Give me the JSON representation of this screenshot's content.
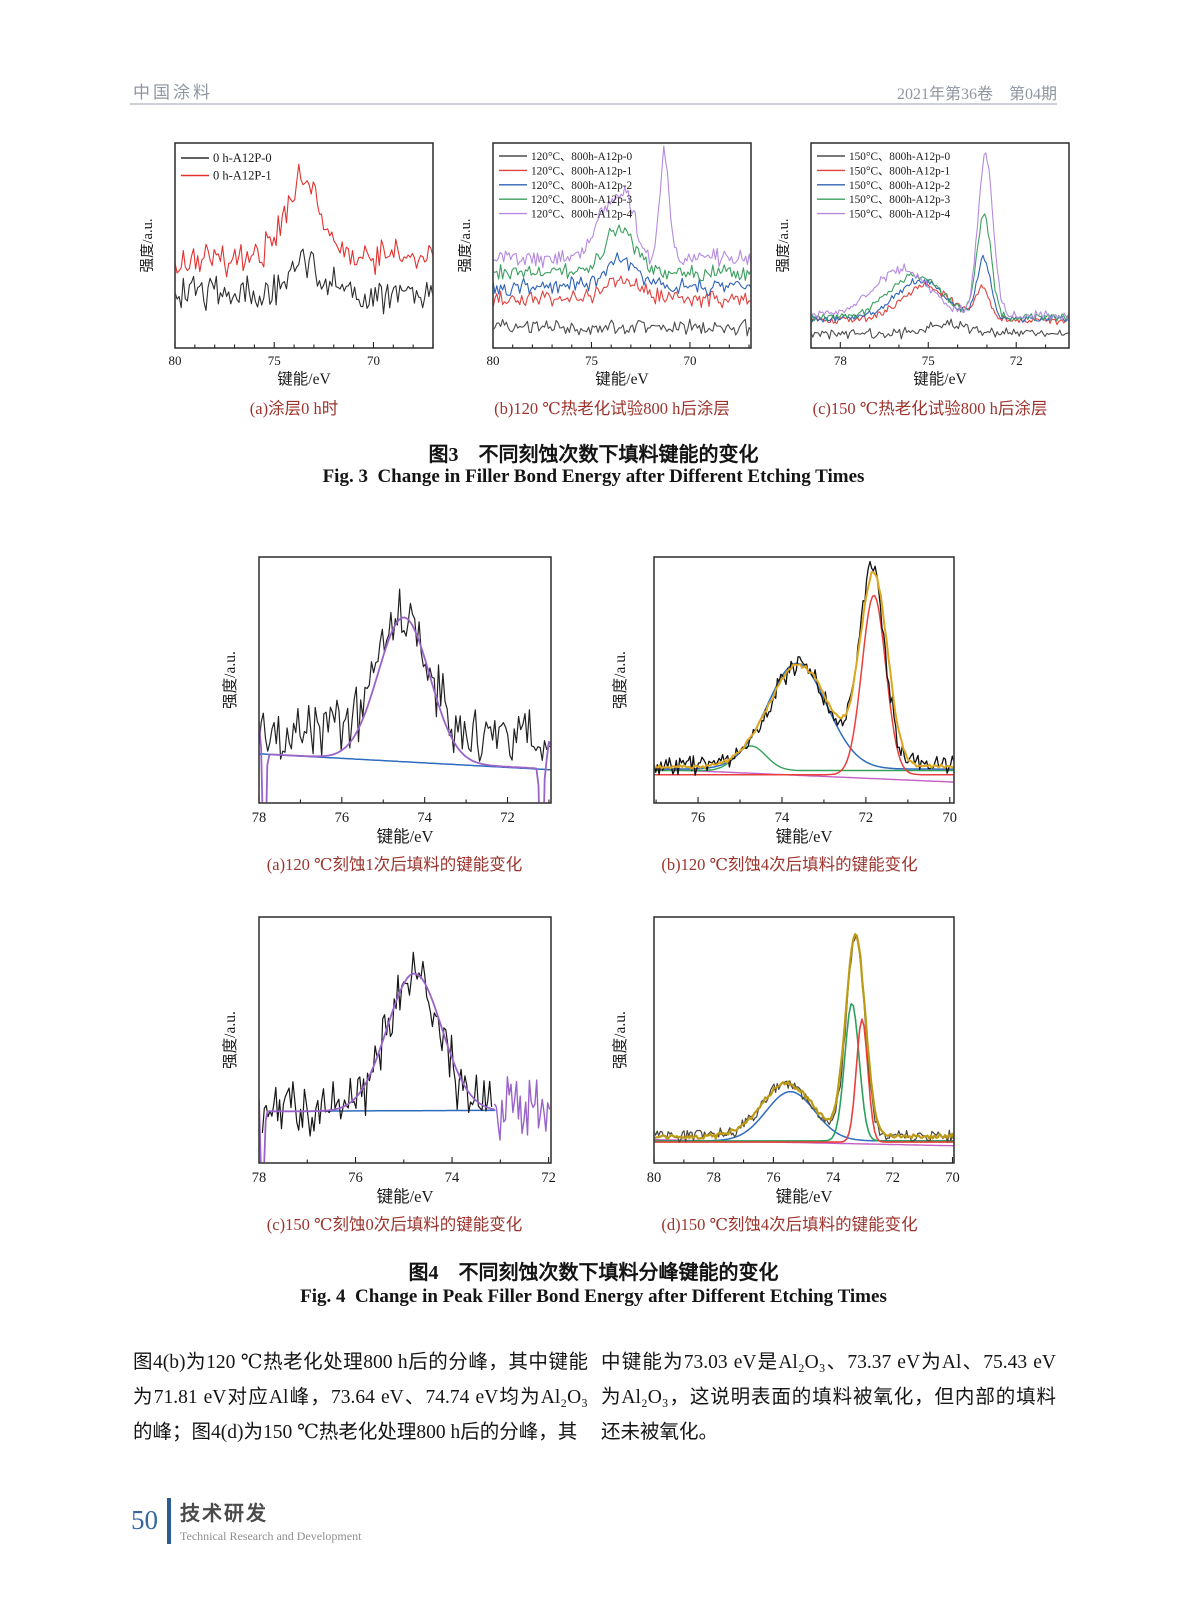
{
  "header": {
    "journal": "中国涂料",
    "issue": "2021年第36卷　第04期"
  },
  "colors": {
    "caption_red": "#9c332c",
    "header_gray": "#8f969f",
    "footer_blue": "#2c5c8f",
    "page_number_blue": "#36679e"
  },
  "figure3": {
    "caption_zh": "图3　不同刻蚀次数下填料键能的变化",
    "caption_en": "Fig. 3  Change in Filler Bond Energy after Different Etching Times",
    "subplots": [
      {
        "label": "(a)涂层0 h时",
        "chart": {
          "xlabel": "键能/eV",
          "ylabel": "强度/a.u.",
          "x_range": [
            80,
            67
          ],
          "x_ticks": [
            80,
            75,
            70
          ],
          "legend": [
            {
              "label": "0 h-A12P-0",
              "color": "#2d2d2d"
            },
            {
              "label": "0 h-A12P-1",
              "color": "#e3312f"
            }
          ],
          "series": [
            {
              "type": "noise",
              "color": "#2d2d2d",
              "base": 0.74,
              "noise": 0.115,
              "peaks": [
                {
                  "c": 73.4,
                  "h": 0.17,
                  "w": 1.1
                }
              ],
              "seed": 101,
              "n": 125,
              "sw": 1.1
            },
            {
              "type": "noise",
              "color": "#e3312f",
              "base": 0.56,
              "noise": 0.1,
              "peaks": [
                {
                  "c": 73.6,
                  "h": 0.4,
                  "w": 1.15
                }
              ],
              "seed": 102,
              "n": 125,
              "sw": 1.1
            }
          ]
        }
      },
      {
        "label": "(b)120 ℃热老化试验800 h后涂层",
        "chart": {
          "xlabel": "键能/eV",
          "ylabel": "强度/a.u.",
          "x_range": [
            80,
            66.9
          ],
          "x_ticks": [
            80,
            75,
            70
          ],
          "legend": [
            {
              "label": "120°C、800h-A12p-0",
              "color": "#4d4d4d"
            },
            {
              "label": "120°C、800h-A12p-1",
              "color": "#e0433f"
            },
            {
              "label": "120°C、800h-A12p-2",
              "color": "#2f63b8"
            },
            {
              "label": "120°C、800h-A12p-3",
              "color": "#3ba05f"
            },
            {
              "label": "120°C、800h-A12p-4",
              "color": "#b48be0"
            }
          ],
          "series": [
            {
              "type": "noise",
              "color": "#4d4d4d",
              "base": 0.9,
              "noise": 0.045,
              "peaks": [],
              "seed": 103,
              "n": 135,
              "sw": 1.1
            },
            {
              "type": "noise",
              "color": "#e0433f",
              "base": 0.76,
              "noise": 0.048,
              "peaks": [
                {
                  "c": 73.4,
                  "h": 0.1,
                  "w": 1.1
                }
              ],
              "seed": 104,
              "n": 135,
              "sw": 1.1
            },
            {
              "type": "noise",
              "color": "#2f63b8",
              "base": 0.7,
              "noise": 0.048,
              "peaks": [
                {
                  "c": 73.5,
                  "h": 0.13,
                  "w": 1.1
                }
              ],
              "seed": 105,
              "n": 135,
              "sw": 1.1
            },
            {
              "type": "noise",
              "color": "#3ba05f",
              "base": 0.635,
              "noise": 0.048,
              "peaks": [
                {
                  "c": 73.6,
                  "h": 0.22,
                  "w": 1.1
                }
              ],
              "seed": 106,
              "n": 135,
              "sw": 1.1
            },
            {
              "type": "noise",
              "color": "#b48be0",
              "base": 0.56,
              "noise": 0.05,
              "peaks": [
                {
                  "c": 74.1,
                  "h": 0.26,
                  "w": 1.0
                },
                {
                  "c": 73.1,
                  "h": 0.2,
                  "w": 0.55
                },
                {
                  "c": 71.3,
                  "h": 0.5,
                  "w": 0.33
                }
              ],
              "seed": 107,
              "n": 145,
              "sw": 1.1
            }
          ]
        }
      },
      {
        "label": "(c)150 ℃热老化试验800 h后涂层",
        "chart": {
          "xlabel": "键能/eV",
          "ylabel": "强度/a.u.",
          "x_range": [
            79,
            70.2
          ],
          "x_ticks": [
            78,
            75,
            72
          ],
          "legend": [
            {
              "label": "150°C、800h-A12p-0",
              "color": "#4d4d4d"
            },
            {
              "label": "150°C、800h-A12p-1",
              "color": "#e0433f"
            },
            {
              "label": "150°C、800h-A12p-2",
              "color": "#2f63b8"
            },
            {
              "label": "150°C、800h-A12p-3",
              "color": "#3ba05f"
            },
            {
              "label": "150°C、800h-A12p-4",
              "color": "#b48be0"
            }
          ],
          "series": [
            {
              "type": "noise",
              "color": "#4d4d4d",
              "base": 0.93,
              "noise": 0.03,
              "peaks": [
                {
                  "c": 74.3,
                  "h": 0.05,
                  "w": 0.9
                }
              ],
              "seed": 108,
              "n": 140,
              "sw": 1.1
            },
            {
              "type": "noise",
              "color": "#e0433f",
              "base": 0.865,
              "noise": 0.022,
              "peaks": [
                {
                  "c": 75.1,
                  "h": 0.165,
                  "w": 1.2
                },
                {
                  "c": 73.15,
                  "h": 0.15,
                  "w": 0.33
                }
              ],
              "seed": 109,
              "n": 150,
              "sw": 1.1
            },
            {
              "type": "noise",
              "color": "#2f63b8",
              "base": 0.857,
              "noise": 0.022,
              "peaks": [
                {
                  "c": 75.3,
                  "h": 0.185,
                  "w": 1.2
                },
                {
                  "c": 73.1,
                  "h": 0.29,
                  "w": 0.33
                }
              ],
              "seed": 110,
              "n": 150,
              "sw": 1.1
            },
            {
              "type": "noise",
              "color": "#3ba05f",
              "base": 0.85,
              "noise": 0.022,
              "peaks": [
                {
                  "c": 75.45,
                  "h": 0.205,
                  "w": 1.25
                },
                {
                  "c": 73.1,
                  "h": 0.5,
                  "w": 0.34
                }
              ],
              "seed": 111,
              "n": 150,
              "sw": 1.1
            },
            {
              "type": "noise",
              "color": "#b48be0",
              "base": 0.838,
              "noise": 0.028,
              "peaks": [
                {
                  "c": 75.9,
                  "h": 0.225,
                  "w": 1.3
                },
                {
                  "c": 73.05,
                  "h": 0.78,
                  "w": 0.36
                }
              ],
              "seed": 112,
              "n": 155,
              "sw": 1.1
            }
          ]
        }
      }
    ]
  },
  "figure4": {
    "caption_zh": "图4　不同刻蚀次数下填料分峰键能的变化",
    "caption_en": "Fig. 4  Change in Peak Filler Bond Energy after Different Etching Times",
    "subplots": [
      {
        "label": "(a)120 ℃刻蚀1次后填料的键能变化",
        "chart": {
          "xlabel": "键能/eV",
          "ylabel": "强度/a.u.",
          "x_range": [
            78,
            70.95
          ],
          "x_ticks": [
            78,
            76,
            74,
            72
          ],
          "series": [
            {
              "type": "fit",
              "color": "#2e6cc0",
              "base": [
                0.8,
                0.865
              ],
              "peaks": [],
              "sw": 1.5
            },
            {
              "type": "noise",
              "color": "#222222",
              "base": [
                0.7,
                0.74
              ],
              "noise": 0.155,
              "peaks": [
                {
                  "c": 74.55,
                  "h": 0.47,
                  "w": 0.85
                }
              ],
              "seed": 113,
              "n": 135,
              "sw": 1.2
            },
            {
              "type": "fit",
              "color": "#9a63c8",
              "base": [
                0.8,
                0.862
              ],
              "peaks": [
                {
                  "c": 74.5,
                  "h": 0.585,
                  "w": 0.88
                },
                {
                  "c": 78.05,
                  "h": 0.17,
                  "w": 0.09
                },
                {
                  "c": 77.87,
                  "h": -0.55,
                  "w": 0.045
                },
                {
                  "c": 71.18,
                  "h": -0.55,
                  "w": 0.05
                },
                {
                  "c": 70.98,
                  "h": 0.12,
                  "w": 0.07
                }
              ],
              "sw": 1.8
            }
          ]
        }
      },
      {
        "label": "(b)120 ℃刻蚀4次后填料的键能变化",
        "chart": {
          "xlabel": "键能/eV",
          "ylabel": "强度/a.u.",
          "x_range": [
            77.05,
            69.9
          ],
          "x_ticks": [
            76,
            74,
            72,
            70
          ],
          "series": [
            {
              "type": "fit",
              "color": "#c45fc4",
              "base": [
                0.862,
                0.915
              ],
              "peaks": [],
              "sw": 1.4
            },
            {
              "type": "fit",
              "color": "#35a05a",
              "base": 0.868,
              "peaks": [
                {
                  "c": 74.74,
                  "h": 0.1,
                  "w": 0.5
                }
              ],
              "sw": 1.4
            },
            {
              "type": "fit",
              "color": "#2e6cc0",
              "base": 0.862,
              "peaks": [
                {
                  "c": 73.64,
                  "h": 0.43,
                  "w": 1.0
                }
              ],
              "sw": 1.5
            },
            {
              "type": "fit",
              "color": "#e8403c",
              "base": 0.885,
              "peaks": [
                {
                  "c": 71.81,
                  "h": 0.73,
                  "w": 0.4
                }
              ],
              "sw": 1.5
            },
            {
              "type": "noise",
              "color": "#111111",
              "base": 0.845,
              "noise": 0.05,
              "peaks": [
                {
                  "c": 73.6,
                  "h": 0.41,
                  "w": 0.95
                },
                {
                  "c": 71.85,
                  "h": 0.79,
                  "w": 0.43
                }
              ],
              "seed": 114,
              "n": 175,
              "sw": 1.3
            },
            {
              "type": "noise",
              "color": "#dca61f",
              "base": 0.852,
              "noise": 0.012,
              "peaks": [
                {
                  "c": 73.6,
                  "h": 0.415,
                  "w": 1.02
                },
                {
                  "c": 71.81,
                  "h": 0.77,
                  "w": 0.46
                }
              ],
              "seed": 115,
              "n": 160,
              "sw": 2.0
            }
          ]
        }
      },
      {
        "label": "(c)150 ℃刻蚀0次后填料的键能变化",
        "chart": {
          "xlabel": "键能/eV",
          "ylabel": "强度/a.u.",
          "x_range": [
            78,
            71.95
          ],
          "x_ticks": [
            78,
            76,
            74,
            72
          ],
          "series": [
            {
              "type": "fit",
              "color": "#2e6cc0",
              "base": [
                0.79,
                0.785
              ],
              "peaks": [],
              "xspan": [
                77.4,
                73.1
              ],
              "sw": 1.5
            },
            {
              "type": "noise",
              "color": "#161616",
              "base": 0.77,
              "noise": 0.13,
              "peaks": [
                {
                  "c": 74.8,
                  "h": 0.52,
                  "w": 0.73
                }
              ],
              "seed": 116,
              "xspan": [
                77.93,
                73.18
              ],
              "n": 120,
              "sw": 1.2
            },
            {
              "type": "fit",
              "color": "#9a63c8",
              "base": 0.79,
              "peaks": [
                {
                  "c": 74.78,
                  "h": 0.56,
                  "w": 0.8
                },
                {
                  "c": 78.02,
                  "h": 0.1,
                  "w": 0.05
                },
                {
                  "c": 77.93,
                  "h": -0.42,
                  "w": 0.045
                }
              ],
              "xspan": [
                78.0,
                73.12
              ],
              "sw": 1.8
            },
            {
              "type": "noise",
              "color": "#9a63c8",
              "base": 0.76,
              "noise": 0.16,
              "peaks": [],
              "seed": 117,
              "xspan": [
                73.12,
                71.98
              ],
              "n": 30,
              "sw": 1.4
            }
          ]
        }
      },
      {
        "label": "(d)150 ℃刻蚀4次后填料的键能变化",
        "chart": {
          "xlabel": "键能/eV",
          "ylabel": "强度/a.u.",
          "x_range": [
            80,
            69.95
          ],
          "x_ticks": [
            80,
            78,
            76,
            74,
            72,
            70
          ],
          "series": [
            {
              "type": "fit",
              "color": "#c45fc4",
              "base": [
                0.905,
                0.93
              ],
              "peaks": [],
              "sw": 1.4
            },
            {
              "type": "fit",
              "color": "#2e6cc0",
              "base": 0.91,
              "peaks": [
                {
                  "c": 75.43,
                  "h": 0.2,
                  "w": 1.15
                }
              ],
              "sw": 1.5
            },
            {
              "type": "fit",
              "color": "#2ca05c",
              "base": 0.91,
              "peaks": [
                {
                  "c": 73.37,
                  "h": 0.56,
                  "w": 0.34
                }
              ],
              "sw": 1.6
            },
            {
              "type": "fit",
              "color": "#e8403c",
              "base": 0.915,
              "peaks": [
                {
                  "c": 73.03,
                  "h": 0.5,
                  "w": 0.27
                }
              ],
              "sw": 1.6
            },
            {
              "type": "noise",
              "color": "#4a463c",
              "base": 0.89,
              "noise": 0.028,
              "peaks": [
                {
                  "c": 75.55,
                  "h": 0.215,
                  "w": 1.15
                },
                {
                  "c": 73.25,
                  "h": 0.815,
                  "w": 0.43
                }
              ],
              "seed": 118,
              "n": 190,
              "sw": 1.2
            },
            {
              "type": "noise",
              "color": "#bd9a14",
              "base": 0.893,
              "noise": 0.012,
              "peaks": [
                {
                  "c": 75.55,
                  "h": 0.215,
                  "w": 1.2
                },
                {
                  "c": 73.25,
                  "h": 0.82,
                  "w": 0.46
                }
              ],
              "seed": 119,
              "n": 170,
              "sw": 2.2
            }
          ]
        }
      }
    ]
  },
  "body": {
    "left_column": "图4(b)为120 ℃热老化处理800 h后的分峰，其中键能为71.81 eV对应Al峰，73.64 eV、74.74 eV均为Al₂O₃的峰；图4(d)为150 ℃热老化处理800 h后的分峰，其",
    "right_column": "中键能为73.03 eV是Al₂O₃、73.37 eV为Al、75.43 eV为Al₂O₃，这说明表面的填料被氧化，但内部的填料还未被氧化。"
  },
  "footer": {
    "page_number": "50",
    "section_zh": "技术研发",
    "section_en": "Technical Research and Development"
  }
}
